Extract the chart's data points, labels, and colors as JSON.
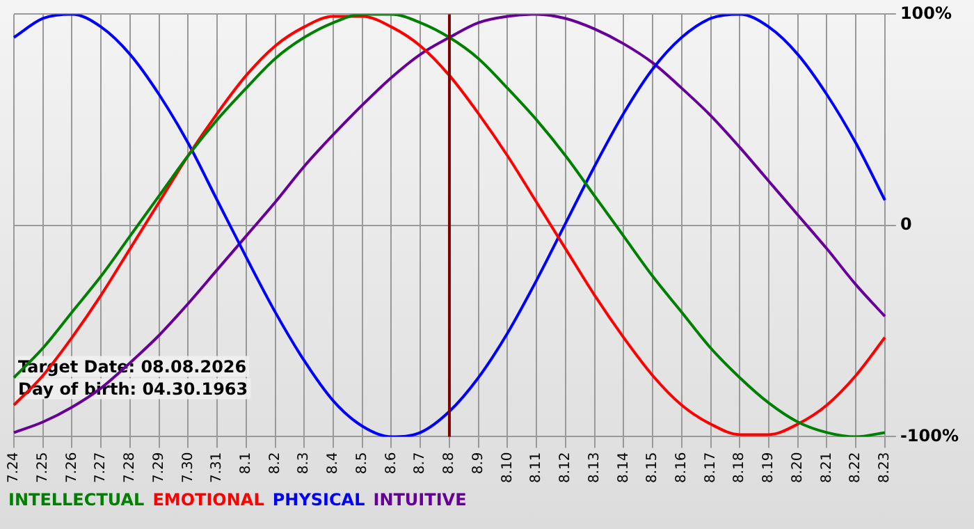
{
  "chart_data": {
    "type": "line",
    "categories": [
      "7.24",
      "7.25",
      "7.26",
      "7.27",
      "7.28",
      "7.29",
      "7.30",
      "7.31",
      "8.1",
      "8.2",
      "8.3",
      "8.4",
      "8.5",
      "8.6",
      "8.7",
      "8.8",
      "8.9",
      "8.10",
      "8.11",
      "8.12",
      "8.13",
      "8.14",
      "8.15",
      "8.16",
      "8.17",
      "8.18",
      "8.19",
      "8.20",
      "8.21",
      "8.22",
      "8.23"
    ],
    "series": [
      {
        "name": "INTELLECTUAL",
        "color": "#008000",
        "values": [
          -72,
          -58,
          -41,
          -24,
          -5,
          14,
          33,
          50,
          65,
          79,
          89,
          96,
          100,
          100,
          96,
          89,
          79,
          65,
          50,
          33,
          14,
          -5,
          -24,
          -41,
          -58,
          -72,
          -84,
          -93,
          -98,
          -100,
          -98
        ]
      },
      {
        "name": "EMOTIONAL",
        "color": "#ff0000",
        "values": [
          -85,
          -71,
          -53,
          -33,
          -11,
          11,
          33,
          53,
          71,
          85,
          94,
          99,
          99,
          94,
          85,
          71,
          53,
          33,
          11,
          -11,
          -33,
          -53,
          -71,
          -85,
          -94,
          -99,
          -99,
          -94,
          -85,
          -71,
          -53
        ]
      },
      {
        "name": "PHYSICAL",
        "color": "#0000ff",
        "values": [
          89,
          98,
          100,
          94,
          81,
          62,
          39,
          12,
          -15,
          -41,
          -64,
          -83,
          -95,
          -100,
          -98,
          -88,
          -72,
          -51,
          -26,
          1,
          28,
          53,
          74,
          89,
          98,
          100,
          94,
          81,
          62,
          39,
          12
        ]
      },
      {
        "name": "INTUITIVE",
        "color": "#660099",
        "values": [
          -98,
          -93,
          -86,
          -77,
          -65,
          -52,
          -37,
          -21,
          -5,
          11,
          28,
          43,
          57,
          70,
          81,
          89,
          96,
          99,
          100,
          98,
          93,
          86,
          77,
          65,
          52,
          37,
          21,
          5,
          -11,
          -28,
          -43
        ]
      }
    ],
    "ylim": [
      -100,
      100
    ],
    "yticks": [
      {
        "value": -100,
        "label": "-100%"
      },
      0,
      {
        "value": 100,
        "label": "100%"
      }
    ],
    "grid": true,
    "legend": "bottom left",
    "marker": "none",
    "line_style": "solid",
    "ref_lines": [
      {
        "axis": "x",
        "value": "8.8",
        "color": "#800000"
      }
    ],
    "annotations": [
      "Target Date: 08.08.2026",
      "Day of birth: 04.30.1963"
    ]
  }
}
